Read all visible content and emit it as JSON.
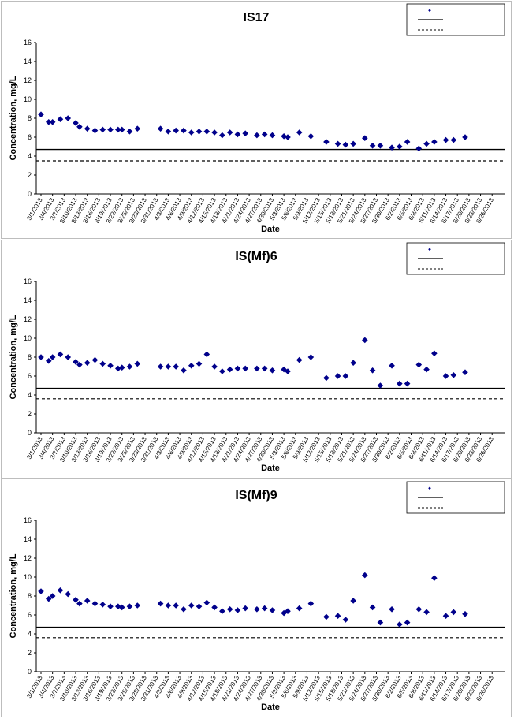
{
  "chart_data": [
    {
      "type": "scatter",
      "title": "IS17",
      "xlabel": "Date",
      "ylabel": "Concentration, mg/L",
      "ylim": [
        0,
        16
      ],
      "yticks": [
        0,
        2,
        4,
        6,
        8,
        10,
        12,
        14,
        16
      ],
      "xticks": [
        "3/1/2013",
        "3/4/2013",
        "3/7/2013",
        "3/10/2013",
        "3/13/2013",
        "3/16/2013",
        "3/19/2013",
        "3/22/2013",
        "3/25/2013",
        "3/28/2013",
        "3/31/2013",
        "4/3/2013",
        "4/6/2013",
        "4/9/2013",
        "4/12/2013",
        "4/15/2013",
        "4/18/2013",
        "4/21/2013",
        "4/24/2013",
        "4/27/2013",
        "4/30/2013",
        "5/3/2013",
        "5/6/2013",
        "5/9/2013",
        "5/12/2013",
        "5/15/2013",
        "5/18/2013",
        "5/21/2013",
        "5/24/2013",
        "5/27/2013",
        "5/30/2013",
        "6/2/2013",
        "6/5/2013",
        "6/8/2013",
        "6/11/2013",
        "6/14/2013",
        "6/17/2013",
        "6/20/2013",
        "6/23/2013",
        "6/26/2013"
      ],
      "series": [
        {
          "values": [
            [
              "3/1/2013",
              8.4
            ],
            [
              "3/3/2013",
              7.6
            ],
            [
              "3/4/2013",
              7.6
            ],
            [
              "3/6/2013",
              7.9
            ],
            [
              "3/8/2013",
              8.0
            ],
            [
              "3/10/2013",
              7.5
            ],
            [
              "3/11/2013",
              7.1
            ],
            [
              "3/13/2013",
              6.9
            ],
            [
              "3/15/2013",
              6.7
            ],
            [
              "3/17/2013",
              6.8
            ],
            [
              "3/19/2013",
              6.8
            ],
            [
              "3/21/2013",
              6.8
            ],
            [
              "3/22/2013",
              6.8
            ],
            [
              "3/24/2013",
              6.6
            ],
            [
              "3/26/2013",
              6.9
            ],
            [
              "4/1/2013",
              6.9
            ],
            [
              "4/3/2013",
              6.6
            ],
            [
              "4/5/2013",
              6.7
            ],
            [
              "4/7/2013",
              6.7
            ],
            [
              "4/9/2013",
              6.5
            ],
            [
              "4/11/2013",
              6.6
            ],
            [
              "4/13/2013",
              6.6
            ],
            [
              "4/15/2013",
              6.5
            ],
            [
              "4/17/2013",
              6.2
            ],
            [
              "4/19/2013",
              6.5
            ],
            [
              "4/21/2013",
              6.3
            ],
            [
              "4/23/2013",
              6.4
            ],
            [
              "4/26/2013",
              6.2
            ],
            [
              "4/28/2013",
              6.3
            ],
            [
              "4/30/2013",
              6.2
            ],
            [
              "5/3/2013",
              6.1
            ],
            [
              "5/4/2013",
              6.0
            ],
            [
              "5/7/2013",
              6.5
            ],
            [
              "5/10/2013",
              6.1
            ],
            [
              "5/14/2013",
              5.5
            ],
            [
              "5/17/2013",
              5.3
            ],
            [
              "5/19/2013",
              5.2
            ],
            [
              "5/21/2013",
              5.3
            ],
            [
              "5/24/2013",
              5.9
            ],
            [
              "5/26/2013",
              5.1
            ],
            [
              "5/28/2013",
              5.1
            ],
            [
              "5/31/2013",
              4.9
            ],
            [
              "6/2/2013",
              5.0
            ],
            [
              "6/4/2013",
              5.5
            ],
            [
              "6/7/2013",
              4.8
            ],
            [
              "6/9/2013",
              5.3
            ],
            [
              "6/11/2013",
              5.5
            ],
            [
              "6/14/2013",
              5.7
            ],
            [
              "6/16/2013",
              5.7
            ],
            [
              "6/19/2013",
              6.0
            ]
          ]
        }
      ],
      "hlines": [
        4.7,
        3.5
      ],
      "legend_position": "top-right",
      "legend_entries": [
        "",
        "",
        ""
      ]
    },
    {
      "type": "scatter",
      "title": "IS(Mf)6",
      "xlabel": "Date",
      "ylabel": "Concentration, mg/L",
      "ylim": [
        0,
        16
      ],
      "yticks": [
        0,
        2,
        4,
        6,
        8,
        10,
        12,
        14,
        16
      ],
      "xticks": [
        "3/1/2013",
        "3/4/2013",
        "3/7/2013",
        "3/10/2013",
        "3/13/2013",
        "3/16/2013",
        "3/19/2013",
        "3/22/2013",
        "3/25/2013",
        "3/28/2013",
        "3/31/2013",
        "4/3/2013",
        "4/6/2013",
        "4/9/2013",
        "4/12/2013",
        "4/15/2013",
        "4/18/2013",
        "4/21/2013",
        "4/24/2013",
        "4/27/2013",
        "4/30/2013",
        "5/3/2013",
        "5/6/2013",
        "5/9/2013",
        "5/12/2013",
        "5/15/2013",
        "5/18/2013",
        "5/21/2013",
        "5/24/2013",
        "5/27/2013",
        "5/30/2013",
        "6/2/2013",
        "6/5/2013",
        "6/8/2013",
        "6/11/2013",
        "6/14/2013",
        "6/17/2013",
        "6/20/2013",
        "6/23/2013",
        "6/26/2013"
      ],
      "series": [
        {
          "values": [
            [
              "3/1/2013",
              8.0
            ],
            [
              "3/3/2013",
              7.6
            ],
            [
              "3/4/2013",
              8.0
            ],
            [
              "3/6/2013",
              8.3
            ],
            [
              "3/8/2013",
              8.0
            ],
            [
              "3/10/2013",
              7.5
            ],
            [
              "3/11/2013",
              7.2
            ],
            [
              "3/13/2013",
              7.4
            ],
            [
              "3/15/2013",
              7.7
            ],
            [
              "3/17/2013",
              7.3
            ],
            [
              "3/19/2013",
              7.1
            ],
            [
              "3/21/2013",
              6.8
            ],
            [
              "3/22/2013",
              6.9
            ],
            [
              "3/24/2013",
              7.0
            ],
            [
              "3/26/2013",
              7.3
            ],
            [
              "4/1/2013",
              7.0
            ],
            [
              "4/3/2013",
              7.0
            ],
            [
              "4/5/2013",
              7.0
            ],
            [
              "4/7/2013",
              6.6
            ],
            [
              "4/9/2013",
              7.1
            ],
            [
              "4/11/2013",
              7.3
            ],
            [
              "4/13/2013",
              8.3
            ],
            [
              "4/15/2013",
              7.0
            ],
            [
              "4/17/2013",
              6.5
            ],
            [
              "4/19/2013",
              6.7
            ],
            [
              "4/21/2013",
              6.8
            ],
            [
              "4/23/2013",
              6.8
            ],
            [
              "4/26/2013",
              6.8
            ],
            [
              "4/28/2013",
              6.8
            ],
            [
              "4/30/2013",
              6.6
            ],
            [
              "5/3/2013",
              6.7
            ],
            [
              "5/4/2013",
              6.5
            ],
            [
              "5/7/2013",
              7.7
            ],
            [
              "5/10/2013",
              8.0
            ],
            [
              "5/14/2013",
              5.8
            ],
            [
              "5/17/2013",
              6.0
            ],
            [
              "5/19/2013",
              6.0
            ],
            [
              "5/21/2013",
              7.4
            ],
            [
              "5/24/2013",
              9.8
            ],
            [
              "5/26/2013",
              6.6
            ],
            [
              "5/28/2013",
              5.0
            ],
            [
              "5/31/2013",
              7.1
            ],
            [
              "6/2/2013",
              5.2
            ],
            [
              "6/4/2013",
              5.2
            ],
            [
              "6/7/2013",
              7.2
            ],
            [
              "6/9/2013",
              6.7
            ],
            [
              "6/11/2013",
              8.4
            ],
            [
              "6/14/2013",
              6.0
            ],
            [
              "6/16/2013",
              6.1
            ],
            [
              "6/19/2013",
              6.4
            ]
          ]
        }
      ],
      "hlines": [
        4.7,
        3.6
      ],
      "legend_position": "top-right",
      "legend_entries": [
        "",
        "",
        ""
      ]
    },
    {
      "type": "scatter",
      "title": "IS(Mf)9",
      "xlabel": "Date",
      "ylabel": "Concentration, mg/L",
      "ylim": [
        0,
        16
      ],
      "yticks": [
        0,
        2,
        4,
        6,
        8,
        10,
        12,
        14,
        16
      ],
      "xticks": [
        "3/1/2013",
        "3/4/2013",
        "3/7/2013",
        "3/10/2013",
        "3/13/2013",
        "3/16/2013",
        "3/19/2013",
        "3/22/2013",
        "3/25/2013",
        "3/28/2013",
        "3/31/2013",
        "4/3/2013",
        "4/6/2013",
        "4/9/2013",
        "4/12/2013",
        "4/15/2013",
        "4/18/2013",
        "4/21/2013",
        "4/24/2013",
        "4/27/2013",
        "4/30/2013",
        "5/3/2013",
        "5/6/2013",
        "5/9/2013",
        "5/12/2013",
        "5/15/2013",
        "5/18/2013",
        "5/21/2013",
        "5/24/2013",
        "5/27/2013",
        "5/30/2013",
        "6/2/2013",
        "6/5/2013",
        "6/8/2013",
        "6/11/2013",
        "6/14/2013",
        "6/17/2013",
        "6/20/2013",
        "6/23/2013",
        "6/26/2013"
      ],
      "series": [
        {
          "values": [
            [
              "3/1/2013",
              8.5
            ],
            [
              "3/3/2013",
              7.7
            ],
            [
              "3/4/2013",
              8.0
            ],
            [
              "3/6/2013",
              8.6
            ],
            [
              "3/8/2013",
              8.2
            ],
            [
              "3/10/2013",
              7.6
            ],
            [
              "3/11/2013",
              7.2
            ],
            [
              "3/13/2013",
              7.5
            ],
            [
              "3/15/2013",
              7.2
            ],
            [
              "3/17/2013",
              7.1
            ],
            [
              "3/19/2013",
              6.9
            ],
            [
              "3/21/2013",
              6.9
            ],
            [
              "3/22/2013",
              6.8
            ],
            [
              "3/24/2013",
              6.9
            ],
            [
              "3/26/2013",
              7.0
            ],
            [
              "4/1/2013",
              7.2
            ],
            [
              "4/3/2013",
              7.0
            ],
            [
              "4/5/2013",
              7.0
            ],
            [
              "4/7/2013",
              6.6
            ],
            [
              "4/9/2013",
              7.0
            ],
            [
              "4/11/2013",
              6.9
            ],
            [
              "4/13/2013",
              7.3
            ],
            [
              "4/15/2013",
              6.8
            ],
            [
              "4/17/2013",
              6.4
            ],
            [
              "4/19/2013",
              6.6
            ],
            [
              "4/21/2013",
              6.5
            ],
            [
              "4/23/2013",
              6.7
            ],
            [
              "4/26/2013",
              6.6
            ],
            [
              "4/28/2013",
              6.7
            ],
            [
              "4/30/2013",
              6.5
            ],
            [
              "5/3/2013",
              6.2
            ],
            [
              "5/4/2013",
              6.4
            ],
            [
              "5/7/2013",
              6.7
            ],
            [
              "5/10/2013",
              7.2
            ],
            [
              "5/14/2013",
              5.8
            ],
            [
              "5/17/2013",
              5.9
            ],
            [
              "5/19/2013",
              5.5
            ],
            [
              "5/21/2013",
              7.5
            ],
            [
              "5/24/2013",
              10.2
            ],
            [
              "5/26/2013",
              6.8
            ],
            [
              "5/28/2013",
              5.2
            ],
            [
              "5/31/2013",
              6.6
            ],
            [
              "6/2/2013",
              5.0
            ],
            [
              "6/4/2013",
              5.2
            ],
            [
              "6/7/2013",
              6.6
            ],
            [
              "6/9/2013",
              6.3
            ],
            [
              "6/11/2013",
              9.9
            ],
            [
              "6/14/2013",
              5.9
            ],
            [
              "6/16/2013",
              6.3
            ],
            [
              "6/19/2013",
              6.1
            ]
          ]
        }
      ],
      "hlines": [
        4.7,
        3.6
      ],
      "legend_position": "top-right",
      "legend_entries": [
        "",
        "",
        ""
      ]
    }
  ],
  "colors": {
    "marker": "#00008b",
    "line": "#000000",
    "frame": "#bdbdbd"
  }
}
